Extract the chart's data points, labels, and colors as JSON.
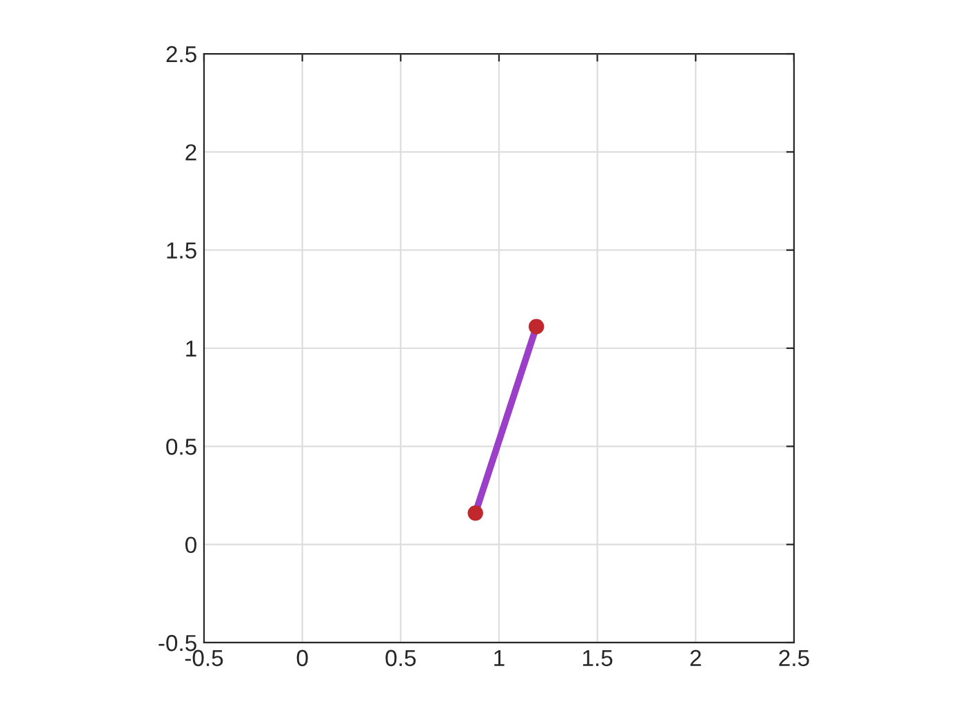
{
  "chart_data": {
    "type": "line",
    "series": [
      {
        "color": "#9b3fc8",
        "colors": [
          "#c0282d",
          "#c0282d"
        ],
        "x": [
          0.88,
          1.19
        ],
        "values": [
          0.16,
          1.11
        ]
      }
    ],
    "marker": "circle",
    "xlim": [
      -0.5,
      2.5
    ],
    "ylim": [
      -0.5,
      2.5
    ],
    "xticks": [
      -0.5,
      0,
      0.5,
      1,
      1.5,
      2,
      2.5
    ],
    "yticks": [
      -0.5,
      0,
      0.5,
      1,
      1.5,
      2,
      2.5
    ],
    "grid": true
  }
}
